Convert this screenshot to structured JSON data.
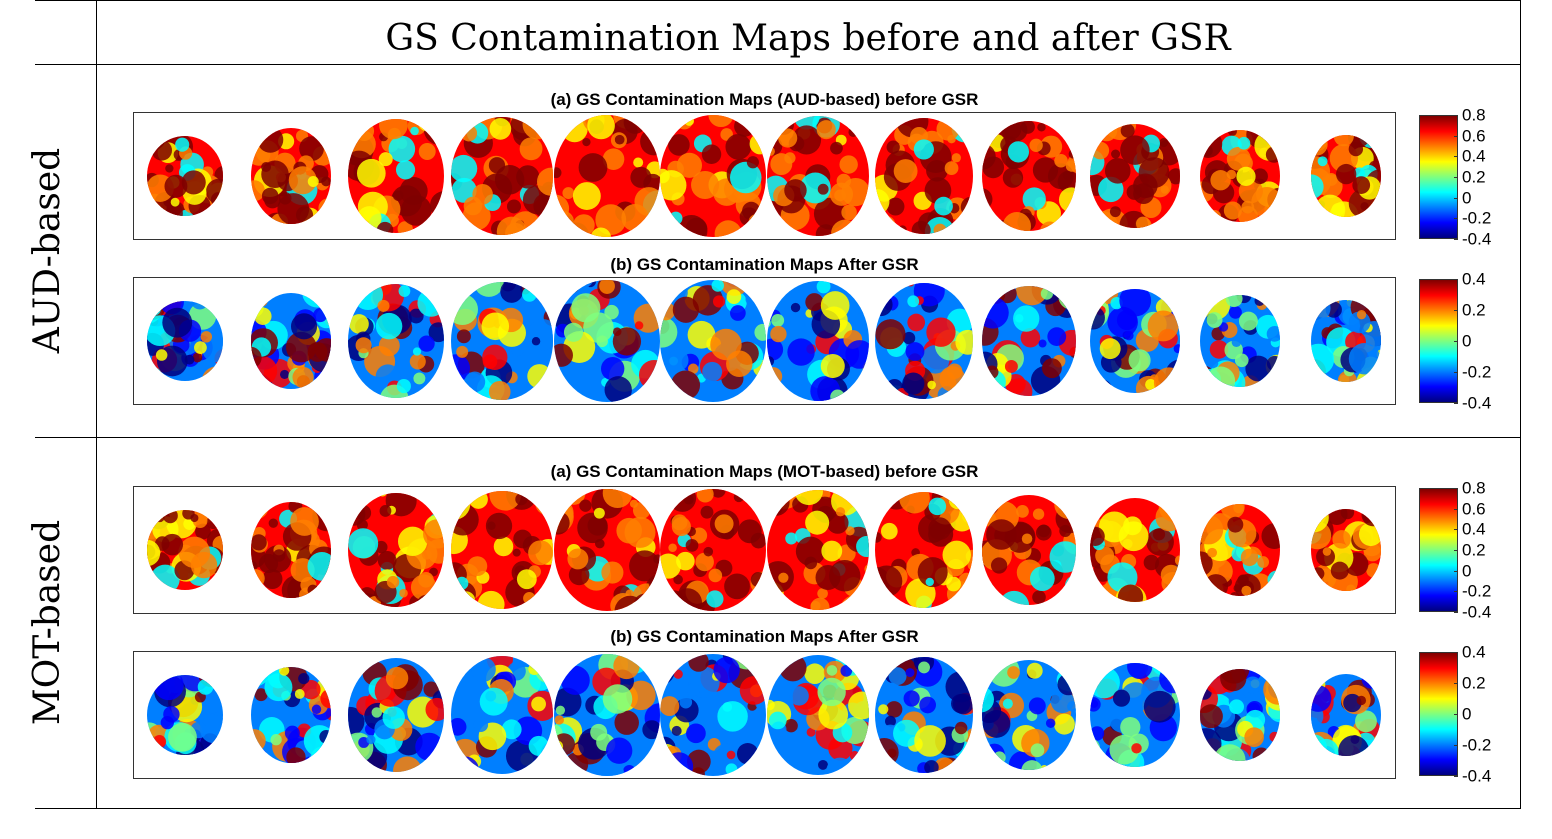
{
  "title": "GS Contamination Maps before and after GSR",
  "rows": [
    {
      "label": "AUD-based",
      "panels": [
        {
          "title": "(a) GS Contamination Maps (AUD-based) before GSR",
          "ticks": [
            "0.8",
            "0.6",
            "0.4",
            "0.2",
            "0",
            "-0.2",
            "-0.4"
          ]
        },
        {
          "title": "(b) GS Contamination Maps After GSR",
          "ticks": [
            "0.4",
            "0.2",
            "0",
            "-0.2",
            "-0.4"
          ]
        }
      ]
    },
    {
      "label": "MOT-based",
      "panels": [
        {
          "title": "(a) GS Contamination Maps (MOT-based) before GSR",
          "ticks": [
            "0.8",
            "0.6",
            "0.4",
            "0.2",
            "0",
            "-0.2",
            "-0.4"
          ]
        },
        {
          "title": "(b) GS Contamination Maps After GSR",
          "ticks": [
            "0.4",
            "0.2",
            "0",
            "-0.2",
            "-0.4"
          ]
        }
      ]
    }
  ],
  "slice_count": 12,
  "colormap": [
    "#00007f",
    "#0000ff",
    "#007fff",
    "#00ffff",
    "#7fff7f",
    "#ffff00",
    "#ff7f00",
    "#ff0000",
    "#7f0000"
  ]
}
